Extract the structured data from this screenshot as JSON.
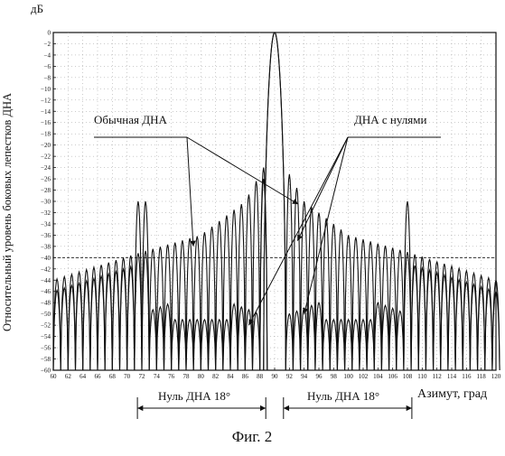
{
  "chart_data": {
    "type": "line",
    "title": "",
    "caption": "Фиг. 2",
    "ylabel": "Относительный уровень боковых лепестков ДНА",
    "yunit": "дБ",
    "xlabel": "Азимут, град",
    "xlim": [
      60,
      120
    ],
    "ylim": [
      -60,
      0
    ],
    "x_ticks": [
      60,
      62,
      64,
      66,
      68,
      70,
      72,
      74,
      76,
      78,
      80,
      82,
      84,
      86,
      88,
      90,
      92,
      94,
      96,
      98,
      100,
      102,
      104,
      106,
      108,
      110,
      112,
      114,
      116,
      118,
      120
    ],
    "y_ticks": [
      0,
      -2,
      -4,
      -6,
      -8,
      -10,
      -12,
      -14,
      -16,
      -18,
      -20,
      -22,
      -24,
      -26,
      -28,
      -30,
      -32,
      -34,
      -36,
      -38,
      -40,
      -42,
      -44,
      -46,
      -48,
      -50,
      -52,
      -54,
      -56,
      -58,
      -60
    ],
    "reference_level": -40,
    "series": [
      {
        "name": "Обычная ДНА",
        "mainlobe": {
          "x": 90,
          "y": 0
        },
        "envelope": {
          "x": [
            60,
            72,
            80,
            86,
            88.5,
            91.5,
            94,
            100,
            108,
            120
          ],
          "y": [
            -44,
            -39,
            -36,
            -30,
            -24,
            -24,
            -30,
            -36,
            -39,
            -44
          ]
        }
      },
      {
        "name": "ДНА с нулями",
        "mainlobe": {
          "x": 90,
          "y": 0
        },
        "null_sectors": [
          [
            72,
            88
          ],
          [
            92,
            108
          ]
        ],
        "null_sector_level": -47,
        "spikes": [
          {
            "x": 72,
            "y": -30
          },
          {
            "x": 108,
            "y": -30
          }
        ]
      }
    ],
    "annotations": [
      {
        "text": "Обычная ДНА"
      },
      {
        "text": "ДНА с нулями"
      },
      {
        "text": "Нуль ДНА 18°",
        "from": 72,
        "to": 90
      },
      {
        "text": "Нуль ДНА 18°",
        "from": 90,
        "to": 108
      }
    ]
  }
}
